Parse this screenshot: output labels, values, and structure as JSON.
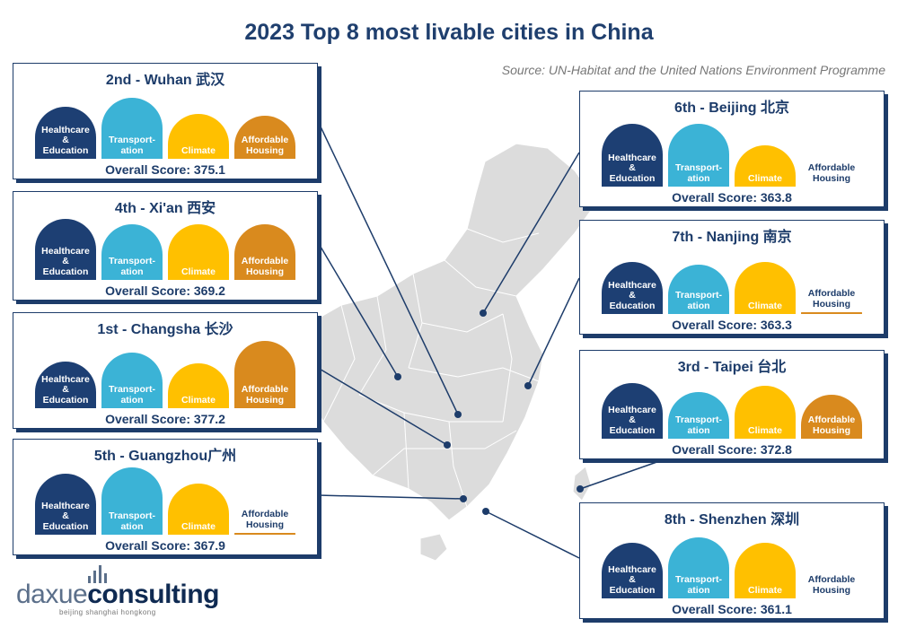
{
  "title": "2023 Top 8 most livable cities in China",
  "source": "Source: UN-Habitat and the United Nations Environment Programme",
  "logo": {
    "name_light": "daxue",
    "name_bold": "consulting",
    "tagline": "beijing shanghai hongkong"
  },
  "colors": {
    "healthcare": "#1d3f73",
    "transportation": "#3bb3d6",
    "climate": "#ffc000",
    "housing": "#d98a1e",
    "map": "#dcdcdc",
    "line": "#1d3c6a"
  },
  "chart_data": {
    "type": "bar",
    "title": "2023 Top 8 most livable cities in China",
    "categories": [
      "Healthcare & Education",
      "Transport-ation",
      "Climate",
      "Affordable Housing"
    ],
    "cards": [
      {
        "rank": "2nd",
        "title": "2nd - Wuhan 武汉",
        "score_label": "Overall Score: 375.1",
        "score": 375.1,
        "values": [
          0.66,
          0.86,
          0.5,
          0.44
        ]
      },
      {
        "rank": "4th",
        "title": "4th - Xi'an 西安",
        "score_label": "Overall Score: 369.2",
        "score": 369.2,
        "values": [
          0.86,
          0.73,
          0.73,
          0.73
        ]
      },
      {
        "rank": "1st",
        "title": "1st - Changsha 长沙",
        "score_label": "Overall Score: 377.2",
        "score": 377.2,
        "values": [
          0.53,
          0.73,
          0.5,
          1.0
        ]
      },
      {
        "rank": "5th",
        "title": "5th - Guangzhou广州",
        "score_label": "Overall Score: 367.9",
        "score": 367.9,
        "values": [
          0.86,
          1.0,
          0.63,
          0.06
        ]
      },
      {
        "rank": "6th",
        "title": "6th - Beijing 北京",
        "score_label": "Overall Score: 363.8",
        "score": 363.8,
        "values": [
          0.89,
          0.89,
          0.41,
          0.0
        ]
      },
      {
        "rank": "7th",
        "title": "7th - Nanjing 南京",
        "score_label": "Overall Score: 363.3",
        "score": 363.3,
        "values": [
          0.66,
          0.59,
          0.66,
          0.04
        ]
      },
      {
        "rank": "3rd",
        "title": "3rd - Taipei 台北",
        "score_label": "Overall Score: 372.8",
        "score": 372.8,
        "values": [
          0.73,
          0.54,
          0.67,
          0.46
        ]
      },
      {
        "rank": "8th",
        "title": "8th - Shenzhen 深圳",
        "score_label": "Overall Score: 361.1",
        "score": 361.1,
        "values": [
          0.73,
          0.86,
          0.73,
          0.0
        ]
      }
    ]
  }
}
